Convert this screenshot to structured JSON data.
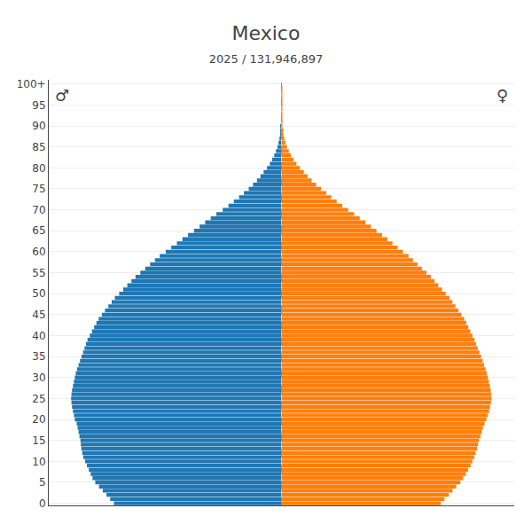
{
  "chart_data": {
    "type": "bar",
    "orientation": "horizontal",
    "title": "Mexico",
    "subtitle": "2025 / 131,946,897",
    "categories": [
      0,
      1,
      2,
      3,
      4,
      5,
      6,
      7,
      8,
      9,
      10,
      11,
      12,
      13,
      14,
      15,
      16,
      17,
      18,
      19,
      20,
      21,
      22,
      23,
      24,
      25,
      26,
      27,
      28,
      29,
      30,
      31,
      32,
      33,
      34,
      35,
      36,
      37,
      38,
      39,
      40,
      41,
      42,
      43,
      44,
      45,
      46,
      47,
      48,
      49,
      50,
      51,
      52,
      53,
      54,
      55,
      56,
      57,
      58,
      59,
      60,
      61,
      62,
      63,
      64,
      65,
      66,
      67,
      68,
      69,
      70,
      71,
      72,
      73,
      74,
      75,
      76,
      77,
      78,
      79,
      80,
      81,
      82,
      83,
      84,
      85,
      86,
      87,
      88,
      89,
      90,
      91,
      92,
      93,
      94,
      95,
      96,
      97,
      98,
      99,
      100
    ],
    "series": [
      {
        "name": "♂",
        "values": [
          900000,
          920000,
          940000,
          960000,
          980000,
          1000000,
          1015000,
          1025000,
          1035000,
          1045000,
          1055000,
          1065000,
          1070000,
          1075000,
          1078000,
          1080000,
          1085000,
          1090000,
          1095000,
          1100000,
          1110000,
          1115000,
          1120000,
          1125000,
          1128000,
          1130000,
          1128000,
          1125000,
          1120000,
          1115000,
          1110000,
          1105000,
          1098000,
          1090000,
          1082000,
          1074000,
          1066000,
          1058000,
          1050000,
          1042000,
          1030000,
          1018000,
          1006000,
          994000,
          982000,
          965000,
          948000,
          930000,
          912000,
          895000,
          872000,
          850000,
          828000,
          806000,
          784000,
          758000,
          732000,
          706000,
          680000,
          654000,
          622000,
          592000,
          562000,
          532000,
          502000,
          470000,
          440000,
          410000,
          380000,
          350000,
          316000,
          285000,
          256000,
          228000,
          202000,
          176000,
          153000,
          132000,
          113000,
          96000,
          78000,
          63000,
          50000,
          39000,
          30000,
          22000,
          16000,
          11000,
          7500,
          5000,
          3200,
          2000,
          1200,
          700,
          400,
          220,
          120,
          65,
          35,
          18,
          8
        ]
      },
      {
        "name": "♀",
        "values": [
          855000,
          875000,
          898000,
          918000,
          938000,
          960000,
          975000,
          990000,
          1002000,
          1015000,
          1025000,
          1035000,
          1042000,
          1050000,
          1055000,
          1060000,
          1068000,
          1075000,
          1082000,
          1090000,
          1100000,
          1108000,
          1115000,
          1120000,
          1125000,
          1128000,
          1126000,
          1123000,
          1118000,
          1113000,
          1108000,
          1102000,
          1096000,
          1088000,
          1080000,
          1072000,
          1063000,
          1054000,
          1045000,
          1036000,
          1025000,
          1014000,
          1003000,
          992000,
          981000,
          966000,
          950000,
          934000,
          918000,
          902000,
          882000,
          862000,
          842000,
          822000,
          802000,
          778000,
          754000,
          730000,
          706000,
          682000,
          652000,
          624000,
          596000,
          568000,
          540000,
          510000,
          480000,
          450000,
          420000,
          390000,
          358000,
          326000,
          296000,
          267000,
          240000,
          212000,
          186000,
          162000,
          140000,
          120000,
          98000,
          80000,
          64000,
          50000,
          39000,
          29000,
          21000,
          15000,
          10000,
          6500,
          4200,
          2600,
          1600,
          950,
          560,
          320,
          180,
          100,
          55,
          28,
          13
        ]
      }
    ],
    "xlim": [
      -1250000,
      1250000
    ],
    "ylim": [
      -0.5,
      101
    ],
    "yticks": [
      0,
      5,
      10,
      15,
      20,
      25,
      30,
      35,
      40,
      45,
      50,
      55,
      60,
      65,
      70,
      75,
      80,
      85,
      90,
      95,
      {
        "value": 100,
        "label": "100+"
      }
    ],
    "tick_labels": "y",
    "grid": true
  }
}
